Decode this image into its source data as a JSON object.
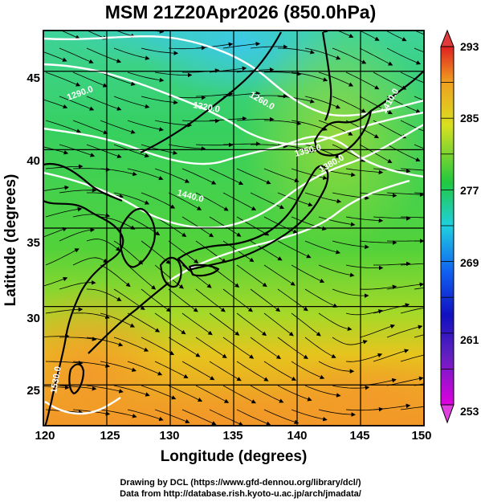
{
  "title": "MSM 21Z20Apr2026 (850.0hPa)",
  "axes": {
    "xlabel": "Longitude (degrees)",
    "ylabel": "Latitude  (degrees)",
    "xticks": [
      "120",
      "125",
      "130",
      "135",
      "140",
      "145",
      "150"
    ],
    "yticks": [
      "45",
      "40",
      "35",
      "30",
      "25"
    ],
    "xlim": [
      120,
      150
    ],
    "ylim": [
      22.4,
      47.6
    ]
  },
  "colorbar": {
    "ticks": [
      "293",
      "285",
      "277",
      "269",
      "261",
      "253"
    ],
    "range": [
      253,
      293
    ],
    "colors": [
      "#e000e0",
      "#1010c0",
      "#1060f0",
      "#20d0e0",
      "#20c840",
      "#d8e020",
      "#f0a020",
      "#e02020"
    ]
  },
  "contour_labels": [
    "1260.0",
    "1290.0",
    "1320.0",
    "1350.0",
    "1380.0",
    "1410.0",
    "1440.0",
    "1530.0"
  ],
  "credits": {
    "line1": "Drawing by DCL (https://www.gfd-dennou.org/library/dcl/)",
    "line2": "Data from http://database.rish.kyoto-u.ac.jp/arch/jmadata/"
  }
}
